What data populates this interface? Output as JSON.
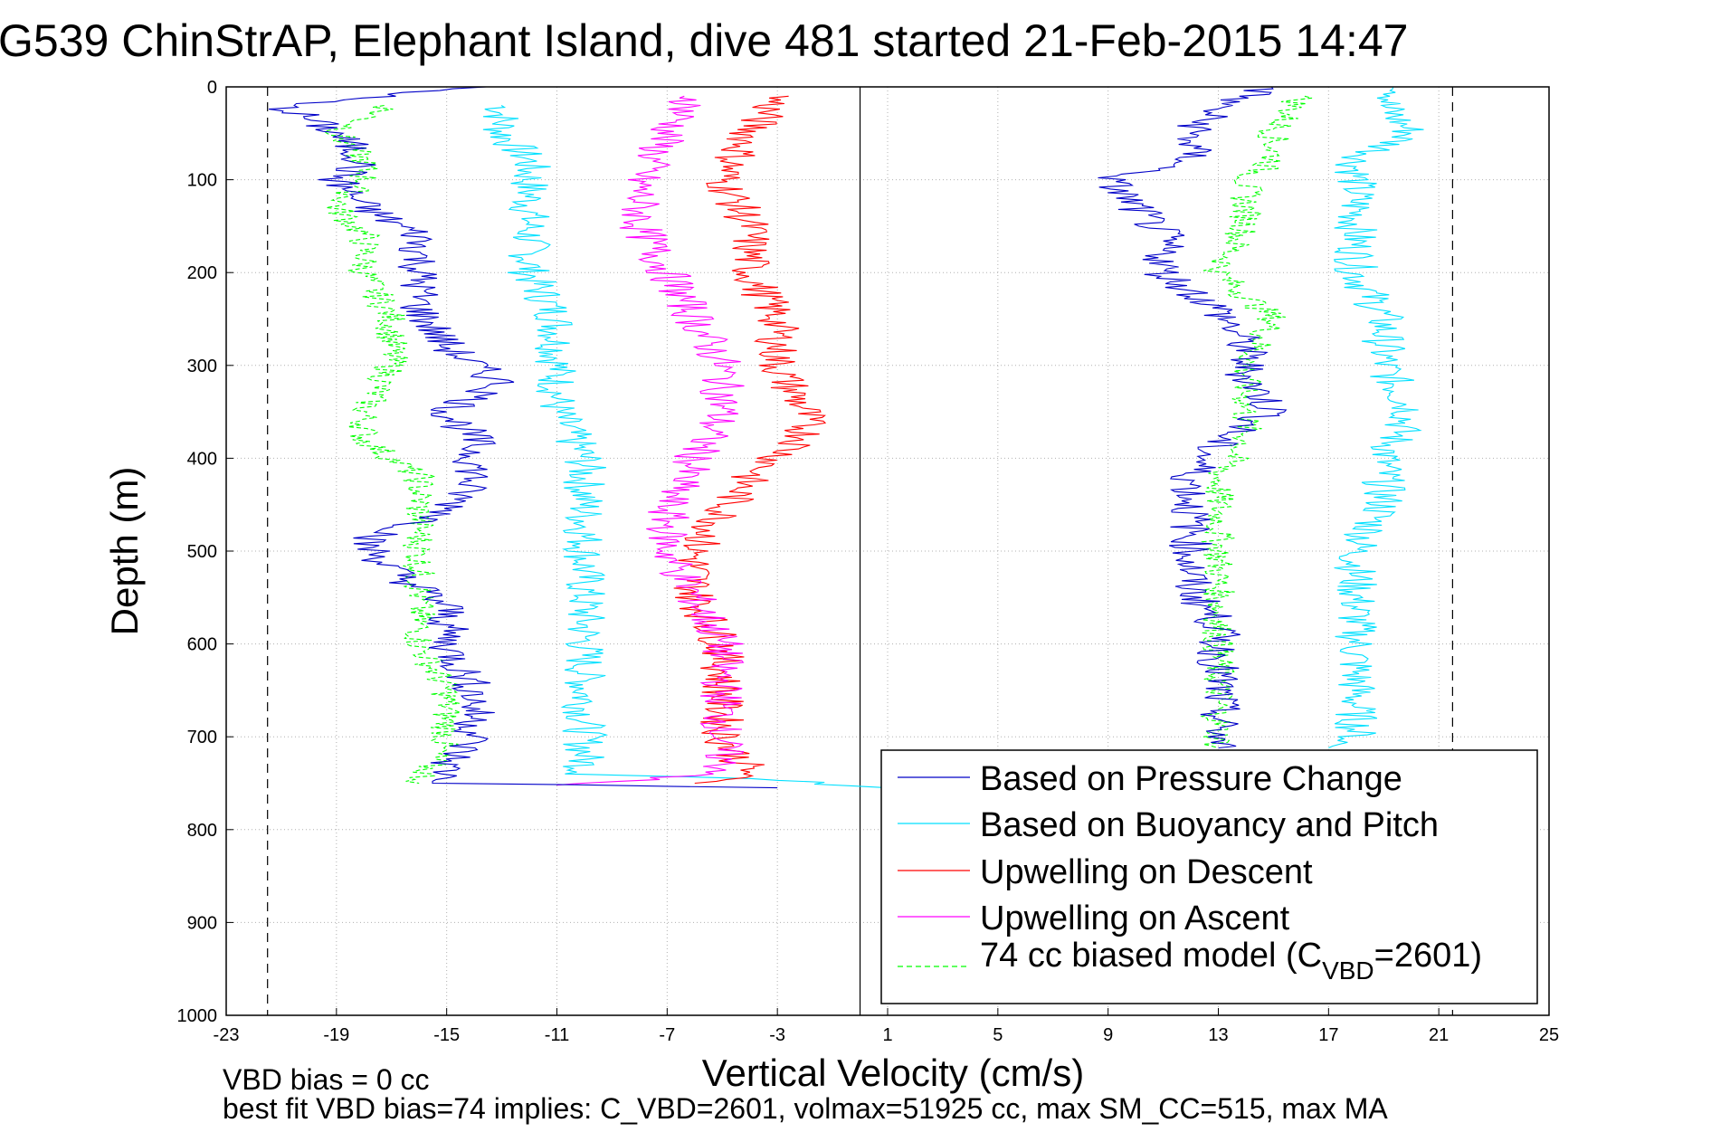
{
  "chart_data": {
    "type": "line",
    "title": "G539 ChinStrAP, Elephant Island, dive 481 started 21-Feb-2015 14:47",
    "xlabel": "Vertical Velocity (cm/s)",
    "ylabel": "Depth (m)",
    "xlim": [
      -23,
      25
    ],
    "ylim": [
      0,
      1000
    ],
    "y_reversed": true,
    "grid": true,
    "x_ticks": [
      "-23",
      "-19",
      "-15",
      "-11",
      "-7",
      "-3",
      "1",
      "5",
      "9",
      "13",
      "17",
      "21",
      "25"
    ],
    "y_ticks": [
      "0",
      "100",
      "200",
      "300",
      "400",
      "500",
      "600",
      "700",
      "800",
      "900",
      "1000"
    ],
    "reference_lines": [
      {
        "x": 0,
        "style": "solid"
      },
      {
        "x": -21.5,
        "style": "dashed"
      },
      {
        "x": 21.5,
        "style": "dashed"
      }
    ],
    "legend": {
      "position": "bottom-right",
      "entries": [
        {
          "label": "Based on Pressure Change",
          "color": "#0000c8",
          "dash": false
        },
        {
          "label": "Based on Buoyancy and Pitch",
          "color": "#00e0ff",
          "dash": false
        },
        {
          "label": "Upwelling on Descent",
          "color": "#ff0000",
          "dash": false
        },
        {
          "label": "Upwelling on Ascent",
          "color": "#ff00ff",
          "dash": false
        },
        {
          "label_main": "74 cc biased model (C",
          "label_sub": "VBD",
          "label_tail": "=2601)",
          "color": "#00ff00",
          "dash": true
        }
      ]
    },
    "series": [
      {
        "name": "Based on Pressure Change",
        "color": "#0000c8",
        "descent": [
          [
            -14,
            0
          ],
          [
            -21,
            20
          ],
          [
            -19,
            50
          ],
          [
            -18,
            80
          ],
          [
            -19,
            100
          ],
          [
            -18,
            130
          ],
          [
            -16,
            160
          ],
          [
            -16,
            200
          ],
          [
            -16,
            240
          ],
          [
            -15,
            280
          ],
          [
            -13,
            320
          ],
          [
            -15,
            350
          ],
          [
            -14,
            380
          ],
          [
            -14,
            420
          ],
          [
            -15,
            460
          ],
          [
            -18,
            490
          ],
          [
            -17,
            520
          ],
          [
            -15,
            560
          ],
          [
            -15,
            600
          ],
          [
            -14,
            650
          ],
          [
            -14,
            700
          ],
          [
            -15,
            730
          ],
          [
            -15,
            750
          ],
          [
            -3,
            755
          ]
        ],
        "ascent": [
          [
            15,
            0
          ],
          [
            13,
            20
          ],
          [
            12,
            50
          ],
          [
            12,
            80
          ],
          [
            9,
            100
          ],
          [
            10,
            130
          ],
          [
            11,
            160
          ],
          [
            11,
            200
          ],
          [
            13,
            240
          ],
          [
            14,
            280
          ],
          [
            14,
            310
          ],
          [
            15,
            350
          ],
          [
            13,
            380
          ],
          [
            12,
            420
          ],
          [
            12,
            460
          ],
          [
            12,
            500
          ],
          [
            12,
            540
          ],
          [
            13,
            580
          ],
          [
            13,
            620
          ],
          [
            13,
            660
          ],
          [
            13,
            700
          ],
          [
            13,
            712
          ]
        ]
      },
      {
        "name": "Based on Buoyancy and Pitch",
        "color": "#00e0ff",
        "descent": [
          [
            -13,
            20
          ],
          [
            -13,
            50
          ],
          [
            -12,
            80
          ],
          [
            -12,
            100
          ],
          [
            -12,
            130
          ],
          [
            -12,
            160
          ],
          [
            -12,
            200
          ],
          [
            -11,
            250
          ],
          [
            -11,
            300
          ],
          [
            -11,
            350
          ],
          [
            -10,
            400
          ],
          [
            -10,
            450
          ],
          [
            -10,
            500
          ],
          [
            -10,
            550
          ],
          [
            -10,
            600
          ],
          [
            -10,
            650
          ],
          [
            -10,
            700
          ],
          [
            -10,
            740
          ],
          [
            -4,
            745
          ],
          [
            1,
            755
          ]
        ],
        "ascent": [
          [
            20,
            0
          ],
          [
            19,
            20
          ],
          [
            20,
            50
          ],
          [
            18,
            80
          ],
          [
            18,
            100
          ],
          [
            18,
            150
          ],
          [
            18,
            200
          ],
          [
            19,
            250
          ],
          [
            19,
            300
          ],
          [
            20,
            350
          ],
          [
            19,
            400
          ],
          [
            19,
            450
          ],
          [
            18,
            500
          ],
          [
            18,
            550
          ],
          [
            18,
            600
          ],
          [
            18,
            650
          ],
          [
            18,
            700
          ],
          [
            17,
            712
          ]
        ]
      },
      {
        "name": "Upwelling on Descent",
        "color": "#ff0000",
        "descent": [
          [
            -3,
            10
          ],
          [
            -4,
            50
          ],
          [
            -5,
            100
          ],
          [
            -4,
            150
          ],
          [
            -4,
            200
          ],
          [
            -3,
            250
          ],
          [
            -3,
            300
          ],
          [
            -2,
            350
          ],
          [
            -2,
            380
          ],
          [
            -4,
            420
          ],
          [
            -5,
            460
          ],
          [
            -6,
            500
          ],
          [
            -6,
            550
          ],
          [
            -5,
            600
          ],
          [
            -5,
            650
          ],
          [
            -5,
            700
          ],
          [
            -4,
            740
          ],
          [
            -6,
            750
          ]
        ]
      },
      {
        "name": "Upwelling on Ascent",
        "color": "#ff00ff",
        "ascent": [
          [
            -6,
            10
          ],
          [
            -7,
            50
          ],
          [
            -8,
            100
          ],
          [
            -8,
            150
          ],
          [
            -7,
            200
          ],
          [
            -6,
            250
          ],
          [
            -5,
            300
          ],
          [
            -5,
            350
          ],
          [
            -6,
            400
          ],
          [
            -7,
            450
          ],
          [
            -7,
            500
          ],
          [
            -6,
            550
          ],
          [
            -5,
            600
          ],
          [
            -5,
            650
          ],
          [
            -5,
            700
          ],
          [
            -5,
            740
          ],
          [
            -11,
            752
          ]
        ]
      },
      {
        "name": "74 cc biased model (CVBD=2601)",
        "color": "#00ff00",
        "dash": true,
        "descent": [
          [
            -17,
            20
          ],
          [
            -19,
            50
          ],
          [
            -18,
            80
          ],
          [
            -18,
            100
          ],
          [
            -19,
            130
          ],
          [
            -18,
            160
          ],
          [
            -18,
            200
          ],
          [
            -17,
            250
          ],
          [
            -17,
            300
          ],
          [
            -18,
            350
          ],
          [
            -18,
            380
          ],
          [
            -16,
            420
          ],
          [
            -16,
            460
          ],
          [
            -16,
            500
          ],
          [
            -16,
            550
          ],
          [
            -16,
            600
          ],
          [
            -15,
            650
          ],
          [
            -15,
            700
          ],
          [
            -16,
            750
          ]
        ],
        "ascent": [
          [
            16,
            10
          ],
          [
            15,
            50
          ],
          [
            15,
            80
          ],
          [
            14,
            100
          ],
          [
            14,
            150
          ],
          [
            13,
            200
          ],
          [
            15,
            250
          ],
          [
            14,
            300
          ],
          [
            14,
            350
          ],
          [
            14,
            380
          ],
          [
            13,
            420
          ],
          [
            13,
            460
          ],
          [
            13,
            500
          ],
          [
            13,
            550
          ],
          [
            13,
            600
          ],
          [
            13,
            650
          ],
          [
            13,
            700
          ],
          [
            13,
            712
          ]
        ]
      }
    ]
  },
  "footnotes": {
    "line1": "VBD bias = 0 cc",
    "line2": "best fit VBD bias=74 implies: C_VBD=2601, volmax=51925 cc, max SM_CC=515, max MA"
  }
}
